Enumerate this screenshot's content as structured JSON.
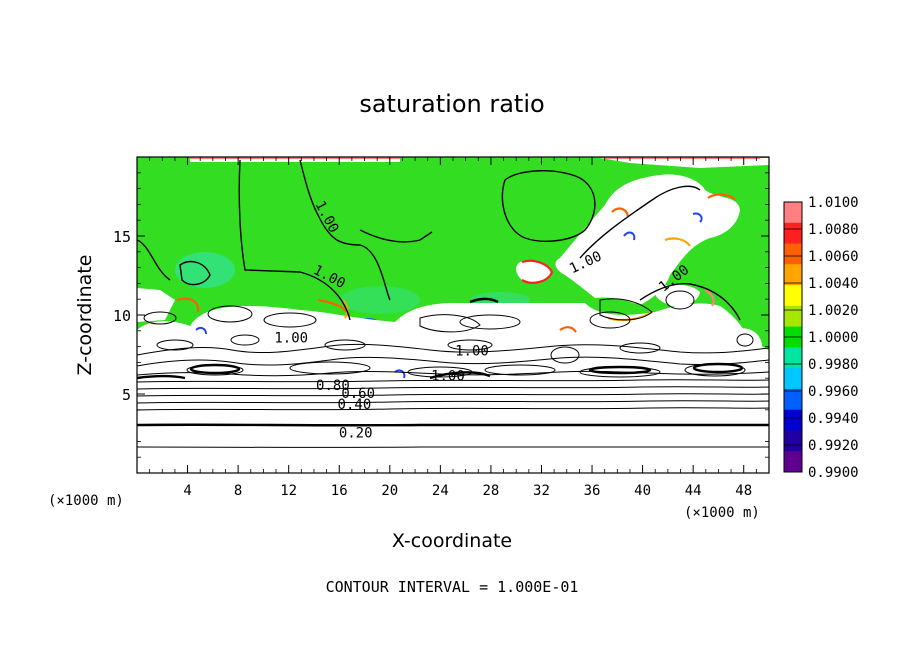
{
  "chart_data": {
    "type": "heatmap",
    "title": "saturation ratio",
    "xlabel": "X-coordinate",
    "ylabel": "Z-coordinate",
    "x_unit_left": "(×1000 m)",
    "x_unit_right": "(×1000 m)",
    "xlim": [
      0,
      50
    ],
    "ylim": [
      0,
      20
    ],
    "x_ticks": [
      4,
      8,
      12,
      16,
      20,
      24,
      28,
      32,
      36,
      40,
      44,
      48
    ],
    "y_ticks": [
      5,
      10,
      15
    ],
    "colorbar": {
      "levels": [
        "1.0100",
        "1.0080",
        "1.0060",
        "1.0040",
        "1.0020",
        "1.0000",
        "0.9980",
        "0.9960",
        "0.9940",
        "0.9920",
        "0.9900"
      ],
      "colors": [
        "#ff8080",
        "#ff2020",
        "#ff6000",
        "#ffa500",
        "#ffff00",
        "#a6e600",
        "#00dd00",
        "#00e6a0",
        "#00c8ff",
        "#0060ff",
        "#0000d0",
        "#2000a0",
        "#600090"
      ]
    },
    "field_colors": {
      "background": "#33dd22",
      "subsaturated": "#ffffff",
      "cyan_patch": "#33e6bb",
      "blue_patch": "#1a44ff"
    },
    "contour_interval": "1.000E-01",
    "contour_labels": [
      {
        "text": "1.00",
        "x": 15.0,
        "y": 16.2,
        "rotate": 62
      },
      {
        "text": "1.00",
        "x": 15.2,
        "y": 12.4,
        "rotate": 28
      },
      {
        "text": "1.00",
        "x": 12.2,
        "y": 8.5,
        "rotate": 0
      },
      {
        "text": "1.00",
        "x": 26.5,
        "y": 7.7,
        "rotate": 0
      },
      {
        "text": "1.00",
        "x": 24.6,
        "y": 6.1,
        "rotate": 0
      },
      {
        "text": "1.00",
        "x": 35.5,
        "y": 13.3,
        "rotate": -25
      },
      {
        "text": "1.00",
        "x": 42.5,
        "y": 12.3,
        "rotate": -38
      },
      {
        "text": "0.80",
        "x": 15.5,
        "y": 5.5,
        "rotate": 0
      },
      {
        "text": "0.60",
        "x": 17.5,
        "y": 5.0,
        "rotate": 0
      },
      {
        "text": "0.40",
        "x": 17.2,
        "y": 4.3,
        "rotate": 0
      },
      {
        "text": "0.20",
        "x": 17.3,
        "y": 2.5,
        "rotate": 0
      }
    ],
    "grid": false,
    "legend": "colorbar right"
  },
  "footer": {
    "contour_text": "CONTOUR INTERVAL = 1.000E-01"
  }
}
